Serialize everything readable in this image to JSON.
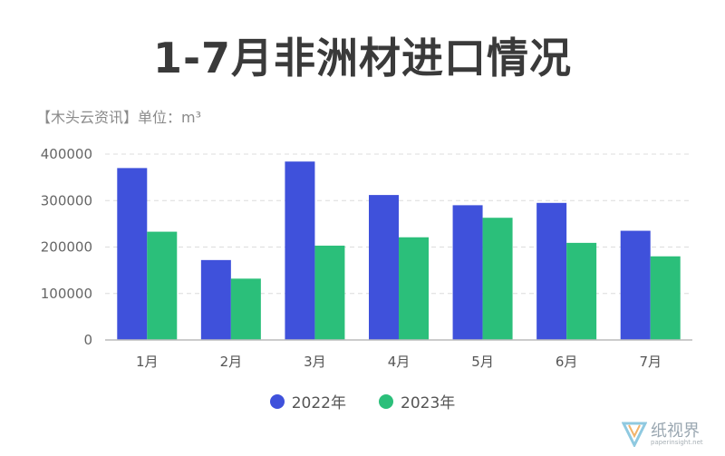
{
  "header": {
    "title": "1-7月非洲材进口情况",
    "subtitle": "【木头云资讯】单位：m³"
  },
  "chart_data": {
    "type": "bar",
    "categories": [
      "1月",
      "2月",
      "3月",
      "4月",
      "5月",
      "6月",
      "7月"
    ],
    "series": [
      {
        "name": "2022年",
        "color": "#3f51db",
        "values": [
          370000,
          172000,
          384000,
          312000,
          290000,
          295000,
          235000
        ]
      },
      {
        "name": "2023年",
        "color": "#2bbf7a",
        "values": [
          233000,
          132000,
          203000,
          221000,
          263000,
          209000,
          180000
        ]
      }
    ],
    "yticks": [
      "0",
      "100000",
      "200000",
      "300000",
      "400000"
    ],
    "ylim": [
      0,
      400000
    ],
    "grid": true,
    "legend_position": "bottom-center"
  },
  "watermark": {
    "text": "纸视界",
    "subtext": "paperinsight.net"
  }
}
